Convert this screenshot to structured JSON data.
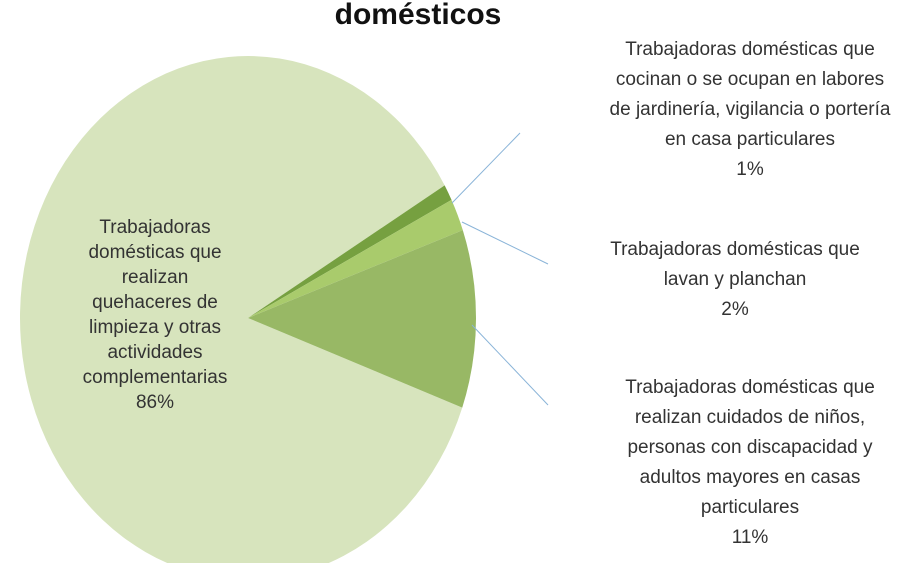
{
  "chart_data": {
    "type": "pie",
    "title": "domésticos",
    "categories": [
      [
        "Trabajadoras",
        "domésticas que",
        "realizan",
        "quehaceres de",
        "limpieza y otras",
        "actividades",
        "complementarias"
      ],
      [
        "Trabajadoras domésticas que",
        "cocinan o se ocupan en labores",
        "de jardinería, vigilancia o portería",
        "en casa particulares"
      ],
      [
        "Trabajadoras domésticas que",
        "lavan y planchan"
      ],
      [
        "Trabajadoras domésticas que",
        "realizan cuidados de niños,",
        "personas con discapacidad y",
        "adultos mayores en casas",
        "particulares"
      ]
    ],
    "values": [
      86,
      1,
      2,
      11
    ],
    "value_labels": [
      "86%",
      "1%",
      "2%",
      "11%"
    ],
    "colors": [
      "#d7e4bd",
      "#76a040",
      "#a9cb6c",
      "#98b865"
    ]
  }
}
